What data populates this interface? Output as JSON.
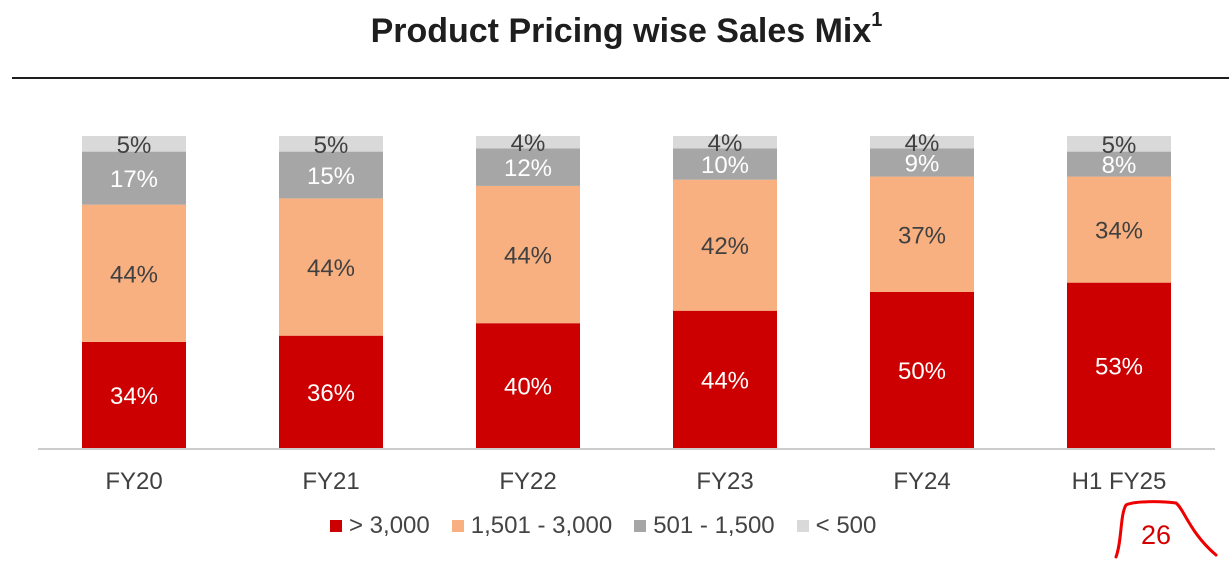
{
  "title": "Product Pricing wise Sales Mix",
  "title_superscript": "1",
  "page_number": "26",
  "colors": {
    "gt_3000": "#cc0000",
    "r_1501_3000": "#f8b080",
    "r_501_1500": "#a6a6a6",
    "lt_500": "#d9d9d9",
    "axis": "#cccccc",
    "badge": "#ee0000"
  },
  "chart_data": {
    "type": "bar",
    "stacked": true,
    "percent_stacked": true,
    "categories": [
      "FY20",
      "FY21",
      "FY22",
      "FY23",
      "FY24",
      "H1 FY25"
    ],
    "series": [
      {
        "name": "> 3,000",
        "color": "#cc0000",
        "label_color": "#ffffff",
        "values": [
          34,
          36,
          40,
          44,
          50,
          53
        ],
        "labels": [
          "34%",
          "36%",
          "40%",
          "44%",
          "50%",
          "53%"
        ]
      },
      {
        "name": "1,501 - 3,000",
        "color": "#f8b080",
        "label_color": "#404040",
        "values": [
          44,
          44,
          44,
          42,
          37,
          34
        ],
        "labels": [
          "44%",
          "44%",
          "44%",
          "42%",
          "37%",
          "34%"
        ]
      },
      {
        "name": "501 - 1,500",
        "color": "#a6a6a6",
        "label_color": "#ffffff",
        "values": [
          17,
          15,
          12,
          10,
          9,
          8
        ],
        "labels": [
          "17%",
          "15%",
          "12%",
          "10%",
          "9%",
          "8%"
        ]
      },
      {
        "name": "< 500",
        "color": "#d9d9d9",
        "label_color": "#404040",
        "values": [
          5,
          5,
          4,
          4,
          4,
          5
        ],
        "labels": [
          "5%",
          "5%",
          "4%",
          "4%",
          "4%",
          "5%"
        ]
      }
    ],
    "ylim": [
      0,
      100
    ],
    "grid": false,
    "legend_position": "bottom"
  }
}
